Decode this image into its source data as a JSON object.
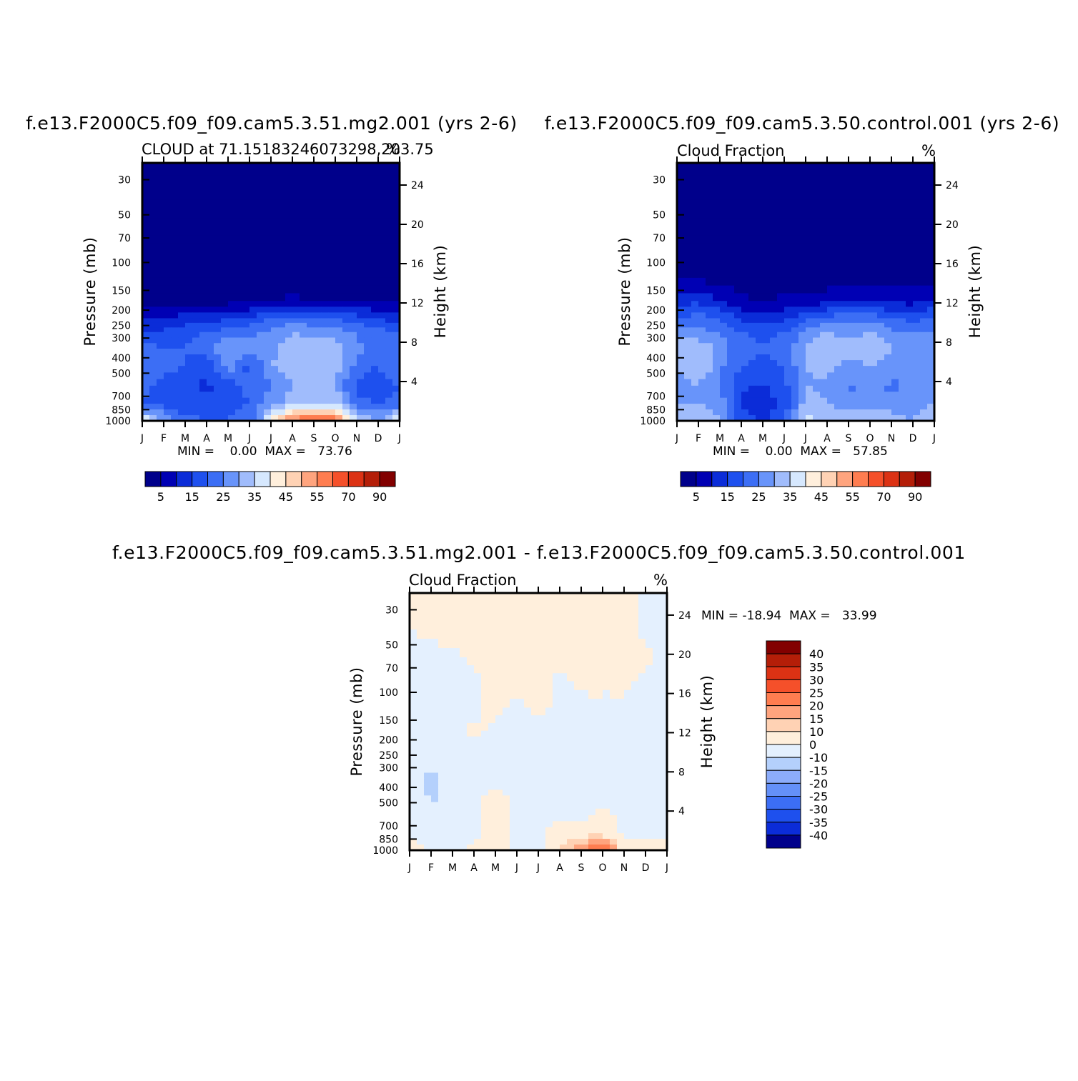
{
  "chart_data": [
    {
      "type": "heatmap",
      "title": "f.e13.F2000C5.f09_f09.cam5.3.51.mg2.001 (yrs 2-6)",
      "subtitle_left": "CLOUD at 71.15183246073298,203.75",
      "subtitle_right": "%",
      "xlabel": "",
      "ylabel": "Pressure (mb)",
      "ylabel_right": "Height (km)",
      "x_ticks": [
        "J",
        "F",
        "M",
        "A",
        "M",
        "J",
        "J",
        "A",
        "S",
        "O",
        "N",
        "D",
        "J"
      ],
      "y_ticks": [
        "30",
        "50",
        "70",
        "100",
        "150",
        "200",
        "250",
        "300",
        "400",
        "500",
        "700",
        "850",
        "1000"
      ],
      "y_right_ticks": [
        "24",
        "20",
        "16",
        "12",
        "8",
        "4"
      ],
      "min_max_text": "MIN =    0.00  MAX =   73.76",
      "colorbar_labels": [
        "5",
        "15",
        "25",
        "35",
        "45",
        "55",
        "70",
        "90"
      ],
      "colorbar_colors": [
        "#00008b",
        "#0000b4",
        "#0b2cd8",
        "#1e50ee",
        "#3c6ef5",
        "#6894fa",
        "#a0bcfc",
        "#d6e8fe",
        "#ffefdc",
        "#ffd2b4",
        "#ffa47e",
        "#ff7d50",
        "#f5502a",
        "#dc3214",
        "#b41e08",
        "#820000"
      ],
      "values": [
        [
          2,
          2,
          2,
          2,
          2,
          2,
          2,
          2,
          2,
          2,
          2,
          2,
          2
        ],
        [
          2,
          2,
          2,
          2,
          2,
          2,
          2,
          2,
          2,
          2,
          2,
          2,
          2
        ],
        [
          2,
          2,
          2,
          2,
          2,
          2,
          2,
          2,
          2,
          2,
          2,
          2,
          2
        ],
        [
          2,
          2,
          2,
          2,
          2,
          2,
          2,
          2,
          2,
          2,
          2,
          2,
          2
        ],
        [
          2,
          2,
          2,
          2,
          2,
          2,
          2,
          2,
          2,
          2,
          2,
          2,
          2
        ],
        [
          4,
          4,
          3,
          3,
          3,
          4,
          5,
          6,
          5,
          5,
          4,
          4,
          4
        ],
        [
          9,
          10,
          12,
          12,
          14,
          16,
          20,
          22,
          21,
          20,
          17,
          15,
          12
        ],
        [
          16,
          16,
          18,
          20,
          22,
          24,
          26,
          30,
          28,
          28,
          24,
          22,
          20
        ],
        [
          22,
          20,
          20,
          22,
          30,
          26,
          28,
          34,
          32,
          32,
          26,
          22,
          22
        ],
        [
          24,
          22,
          20,
          16,
          28,
          18,
          30,
          34,
          30,
          32,
          24,
          20,
          26
        ],
        [
          22,
          18,
          16,
          14,
          18,
          22,
          24,
          30,
          30,
          30,
          18,
          16,
          20
        ],
        [
          20,
          18,
          16,
          16,
          18,
          20,
          28,
          32,
          36,
          34,
          22,
          20,
          22
        ],
        [
          40,
          30,
          22,
          20,
          20,
          22,
          40,
          58,
          62,
          60,
          36,
          30,
          40
        ]
      ]
    },
    {
      "type": "heatmap",
      "title": "f.e13.F2000C5.f09_f09.cam5.3.50.control.001 (yrs 2-6)",
      "subtitle_left": "Cloud Fraction",
      "subtitle_right": "%",
      "xlabel": "",
      "ylabel": "Pressure (mb)",
      "ylabel_right": "Height (km)",
      "x_ticks": [
        "J",
        "F",
        "M",
        "A",
        "M",
        "J",
        "J",
        "A",
        "S",
        "O",
        "N",
        "D",
        "J"
      ],
      "y_ticks": [
        "30",
        "50",
        "70",
        "100",
        "150",
        "200",
        "250",
        "300",
        "400",
        "500",
        "700",
        "850",
        "1000"
      ],
      "y_right_ticks": [
        "24",
        "20",
        "16",
        "12",
        "8",
        "4"
      ],
      "min_max_text": "MIN =    0.00  MAX =   57.85",
      "colorbar_labels": [
        "5",
        "15",
        "25",
        "35",
        "45",
        "55",
        "70",
        "90"
      ],
      "colorbar_colors": [
        "#00008b",
        "#0000b4",
        "#0b2cd8",
        "#1e50ee",
        "#3c6ef5",
        "#6894fa",
        "#a0bcfc",
        "#d6e8fe",
        "#ffefdc",
        "#ffd2b4",
        "#ffa47e",
        "#ff7d50",
        "#f5502a",
        "#dc3214",
        "#b41e08",
        "#820000"
      ],
      "values": [
        [
          2,
          2,
          2,
          2,
          2,
          2,
          2,
          2,
          2,
          2,
          2,
          2,
          2
        ],
        [
          2,
          2,
          2,
          2,
          2,
          2,
          2,
          2,
          2,
          2,
          2,
          2,
          2
        ],
        [
          2,
          2,
          2,
          2,
          2,
          2,
          2,
          2,
          2,
          2,
          2,
          2,
          2
        ],
        [
          2,
          2,
          2,
          2,
          2,
          2,
          2,
          2,
          2,
          2,
          2,
          2,
          2
        ],
        [
          4,
          4,
          3,
          2,
          2,
          2,
          2,
          2,
          2,
          2,
          2,
          2,
          3
        ],
        [
          12,
          14,
          10,
          6,
          5,
          6,
          7,
          8,
          8,
          10,
          9,
          8,
          12
        ],
        [
          20,
          22,
          20,
          14,
          12,
          14,
          18,
          22,
          24,
          24,
          20,
          18,
          20
        ],
        [
          28,
          26,
          24,
          20,
          18,
          20,
          26,
          30,
          28,
          30,
          26,
          24,
          26
        ],
        [
          32,
          34,
          28,
          22,
          20,
          22,
          30,
          36,
          32,
          36,
          30,
          28,
          30
        ],
        [
          30,
          36,
          26,
          20,
          18,
          20,
          30,
          32,
          28,
          30,
          28,
          26,
          28
        ],
        [
          28,
          30,
          24,
          16,
          14,
          18,
          30,
          28,
          24,
          26,
          24,
          26,
          28
        ],
        [
          30,
          30,
          28,
          14,
          12,
          16,
          32,
          30,
          26,
          28,
          28,
          28,
          30
        ],
        [
          32,
          34,
          30,
          18,
          14,
          22,
          36,
          34,
          34,
          34,
          32,
          30,
          32
        ]
      ]
    },
    {
      "type": "heatmap",
      "title": "f.e13.F2000C5.f09_f09.cam5.3.51.mg2.001 - f.e13.F2000C5.f09_f09.cam5.3.50.control.001",
      "subtitle_left": "Cloud Fraction",
      "subtitle_right": "%",
      "xlabel": "",
      "ylabel": "Pressure (mb)",
      "ylabel_right": "Height (km)",
      "x_ticks": [
        "J",
        "F",
        "M",
        "A",
        "M",
        "J",
        "J",
        "A",
        "S",
        "O",
        "N",
        "D",
        "J"
      ],
      "y_ticks": [
        "30",
        "50",
        "70",
        "100",
        "150",
        "200",
        "250",
        "300",
        "400",
        "500",
        "700",
        "850",
        "1000"
      ],
      "y_right_ticks": [
        "24",
        "20",
        "16",
        "12",
        "8",
        "4"
      ],
      "min_max_text": "MIN = -18.94  MAX =   33.99",
      "colorbar_labels": [
        "40",
        "35",
        "30",
        "25",
        "20",
        "15",
        "10",
        "0",
        "-10",
        "-15",
        "-20",
        "-25",
        "-30",
        "-35",
        "-40"
      ],
      "colorbar_colors": [
        "#820000",
        "#b41e08",
        "#dc3214",
        "#f5502a",
        "#ff7d50",
        "#ffa47e",
        "#ffd2b4",
        "#ffefdc",
        "#e4f0fe",
        "#b4d0fc",
        "#8cacfa",
        "#6490f8",
        "#3c6ef5",
        "#1e50ee",
        "#0b2cd8",
        "#00008b"
      ],
      "values": [
        [
          0,
          2,
          2,
          2,
          2,
          2,
          2,
          2,
          2,
          2,
          2,
          -2,
          -2
        ],
        [
          0,
          2,
          2,
          2,
          2,
          2,
          2,
          2,
          2,
          2,
          2,
          -2,
          -2
        ],
        [
          -2,
          -2,
          -2,
          2,
          2,
          2,
          2,
          2,
          2,
          2,
          2,
          2,
          -2
        ],
        [
          -2,
          -2,
          -2,
          -2,
          2,
          2,
          2,
          -2,
          2,
          2,
          2,
          -2,
          -2
        ],
        [
          -2,
          -2,
          -2,
          -2,
          2,
          -2,
          2,
          -2,
          -2,
          -2,
          -2,
          -2,
          -2
        ],
        [
          -2,
          -2,
          -2,
          2,
          -2,
          -2,
          -2,
          -2,
          -2,
          -2,
          -2,
          -2,
          -2
        ],
        [
          -4,
          -4,
          -2,
          -2,
          -2,
          -2,
          -2,
          -2,
          -4,
          -6,
          -2,
          -2,
          -2
        ],
        [
          -6,
          -8,
          -4,
          -2,
          -2,
          -4,
          -2,
          -2,
          -6,
          -8,
          -4,
          -2,
          -2
        ],
        [
          -6,
          -12,
          -8,
          -2,
          -2,
          -2,
          -2,
          -2,
          -2,
          -4,
          -2,
          -2,
          -2
        ],
        [
          -4,
          -12,
          -8,
          -2,
          2,
          -2,
          -2,
          -2,
          -2,
          -2,
          -2,
          -2,
          -2
        ],
        [
          -2,
          -6,
          -6,
          -2,
          4,
          -2,
          -2,
          -2,
          -2,
          2,
          -2,
          -2,
          -2
        ],
        [
          -2,
          -2,
          -4,
          -2,
          6,
          -2,
          -2,
          4,
          6,
          8,
          -2,
          -2,
          -2
        ],
        [
          4,
          -2,
          -4,
          2,
          8,
          -2,
          -2,
          10,
          20,
          30,
          6,
          4,
          4
        ]
      ]
    }
  ]
}
